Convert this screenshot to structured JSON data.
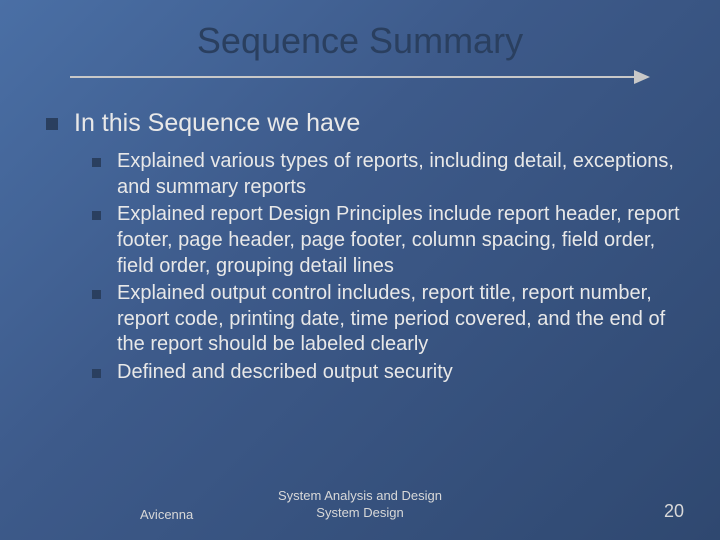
{
  "slide": {
    "title": "Sequence Summary",
    "heading": "In this Sequence we have",
    "bullets": [
      "Explained various types of reports, including detail, exceptions, and summary reports",
      "Explained report Design Principles include report header, report footer, page header, page footer, column spacing, field order, field order, grouping detail lines",
      "Explained output control includes, report title, report number, report code, printing date, time period covered, and the end of the report should be labeled clearly",
      "Defined and described output security"
    ]
  },
  "footer": {
    "author": "Avicenna",
    "center_line1": "System Analysis and Design",
    "center_line2": "System Design",
    "page": "20"
  },
  "colors": {
    "bg_start": "#4a6fa5",
    "bg_end": "#2f4870",
    "title_color": "#2a3f5f",
    "bullet_color": "#2a3f5f",
    "text_color": "#e8e8e8",
    "underline_color": "#c8c8c8"
  },
  "typography": {
    "title_fontsize": 36,
    "l1_fontsize": 25,
    "l2_fontsize": 20,
    "footer_fontsize": 13,
    "pagenum_fontsize": 18,
    "font_family": "Verdana"
  }
}
